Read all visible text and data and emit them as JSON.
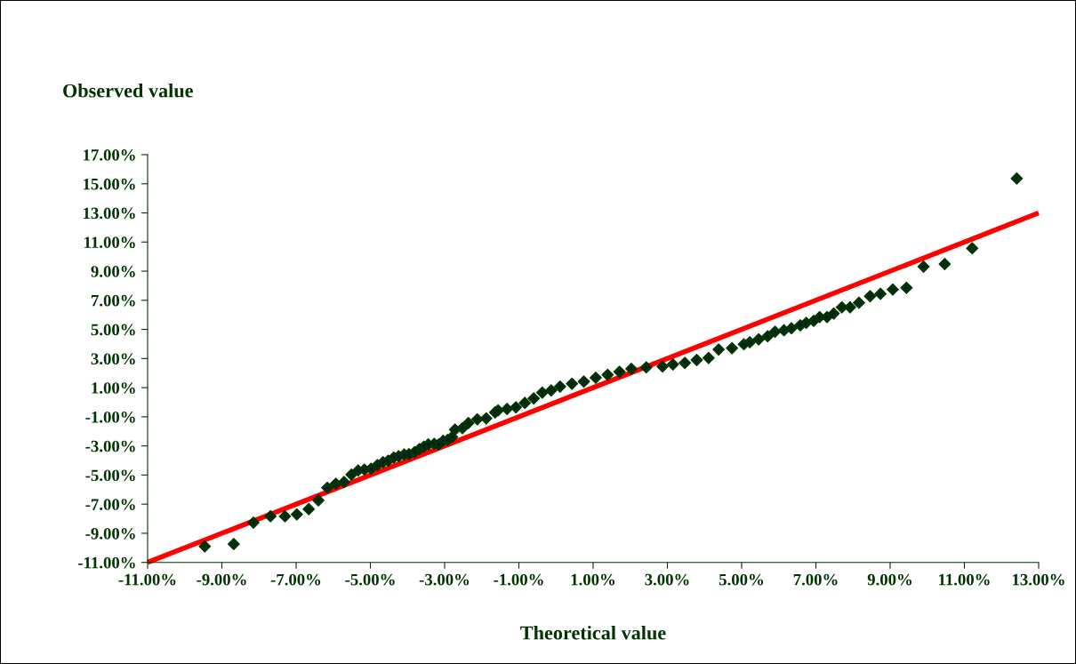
{
  "chart_data": {
    "type": "scatter",
    "xlabel": "Theoretical value",
    "ylabel": "Observed value",
    "xlim": [
      -11,
      13
    ],
    "ylim": [
      -11,
      17
    ],
    "xticks": [
      {
        "value": -11,
        "label": "-11.00%"
      },
      {
        "value": -9,
        "label": "-9.00%"
      },
      {
        "value": -7,
        "label": "-7.00%"
      },
      {
        "value": -5,
        "label": "-5.00%"
      },
      {
        "value": -3,
        "label": "-3.00%"
      },
      {
        "value": -1,
        "label": "-1.00%"
      },
      {
        "value": 1,
        "label": "1.00%"
      },
      {
        "value": 3,
        "label": "3.00%"
      },
      {
        "value": 5,
        "label": "5.00%"
      },
      {
        "value": 7,
        "label": "7.00%"
      },
      {
        "value": 9,
        "label": "9.00%"
      },
      {
        "value": 11,
        "label": "11.00%"
      },
      {
        "value": 13,
        "label": "13.00%"
      }
    ],
    "yticks": [
      {
        "value": -11,
        "label": "-11.00%"
      },
      {
        "value": -9,
        "label": "-9.00%"
      },
      {
        "value": -7,
        "label": "-7.00%"
      },
      {
        "value": -5,
        "label": "-5.00%"
      },
      {
        "value": -3,
        "label": "-3.00%"
      },
      {
        "value": -1,
        "label": "-1.00%"
      },
      {
        "value": 1,
        "label": "1.00%"
      },
      {
        "value": 3,
        "label": "3.00%"
      },
      {
        "value": 5,
        "label": "5.00%"
      },
      {
        "value": 7,
        "label": "7.00%"
      },
      {
        "value": 9,
        "label": "9.00%"
      },
      {
        "value": 11,
        "label": "11.00%"
      },
      {
        "value": 13,
        "label": "13.00%"
      },
      {
        "value": 15,
        "label": "15.00%"
      },
      {
        "value": 17,
        "label": "17.00%"
      }
    ],
    "grid": false,
    "marker": "diamond",
    "series": [
      {
        "color": "#003300",
        "x": [
          -9.46,
          -8.68,
          -8.15,
          -7.69,
          -7.3,
          -6.98,
          -6.66,
          -6.4,
          -6.16,
          -5.93,
          -5.71,
          -5.51,
          -5.33,
          -5.16,
          -4.98,
          -4.81,
          -4.66,
          -4.52,
          -4.37,
          -4.24,
          -4.09,
          -3.96,
          -3.81,
          -3.68,
          -3.56,
          -3.44,
          -3.28,
          -3.16,
          -3.04,
          -2.92,
          -2.8,
          -2.72,
          -2.52,
          -2.36,
          -2.12,
          -1.88,
          -1.64,
          -1.56,
          -1.32,
          -1.08,
          -0.84,
          -0.6,
          -0.37,
          -0.13,
          0.11,
          0.43,
          0.75,
          1.07,
          1.39,
          1.71,
          2.03,
          2.43,
          2.87,
          3.15,
          3.47,
          3.79,
          4.11,
          4.38,
          4.74,
          5.06,
          5.22,
          5.46,
          5.7,
          5.9,
          6.14,
          6.34,
          6.58,
          6.74,
          6.94,
          7.1,
          7.3,
          7.48,
          7.7,
          7.92,
          8.16,
          8.46,
          8.74,
          9.07,
          9.44,
          9.9,
          10.47,
          11.21,
          12.41
        ],
        "values": [
          -9.9,
          -9.74,
          -8.27,
          -7.83,
          -7.83,
          -7.7,
          -7.34,
          -6.74,
          -5.87,
          -5.6,
          -5.48,
          -4.97,
          -4.69,
          -4.63,
          -4.57,
          -4.32,
          -4.12,
          -4.02,
          -3.8,
          -3.71,
          -3.59,
          -3.57,
          -3.43,
          -3.22,
          -3.06,
          -2.9,
          -2.86,
          -2.9,
          -2.65,
          -2.59,
          -2.39,
          -1.88,
          -1.78,
          -1.43,
          -1.17,
          -1.11,
          -0.7,
          -0.56,
          -0.46,
          -0.35,
          -0.05,
          0.26,
          0.66,
          0.81,
          1.07,
          1.27,
          1.42,
          1.68,
          1.88,
          2.09,
          2.29,
          2.39,
          2.45,
          2.6,
          2.7,
          2.9,
          3.04,
          3.62,
          3.71,
          3.98,
          4.12,
          4.32,
          4.53,
          4.84,
          4.94,
          5.08,
          5.28,
          5.45,
          5.59,
          5.85,
          5.85,
          6.09,
          6.52,
          6.52,
          6.83,
          7.28,
          7.44,
          7.74,
          7.86,
          9.31,
          9.49,
          10.57,
          15.36
        ]
      },
      {
        "type": "line",
        "color": "#ff0000",
        "marker": "none",
        "line_style": "solid",
        "x": [
          -11,
          13
        ],
        "values": [
          -11,
          13
        ]
      }
    ]
  }
}
